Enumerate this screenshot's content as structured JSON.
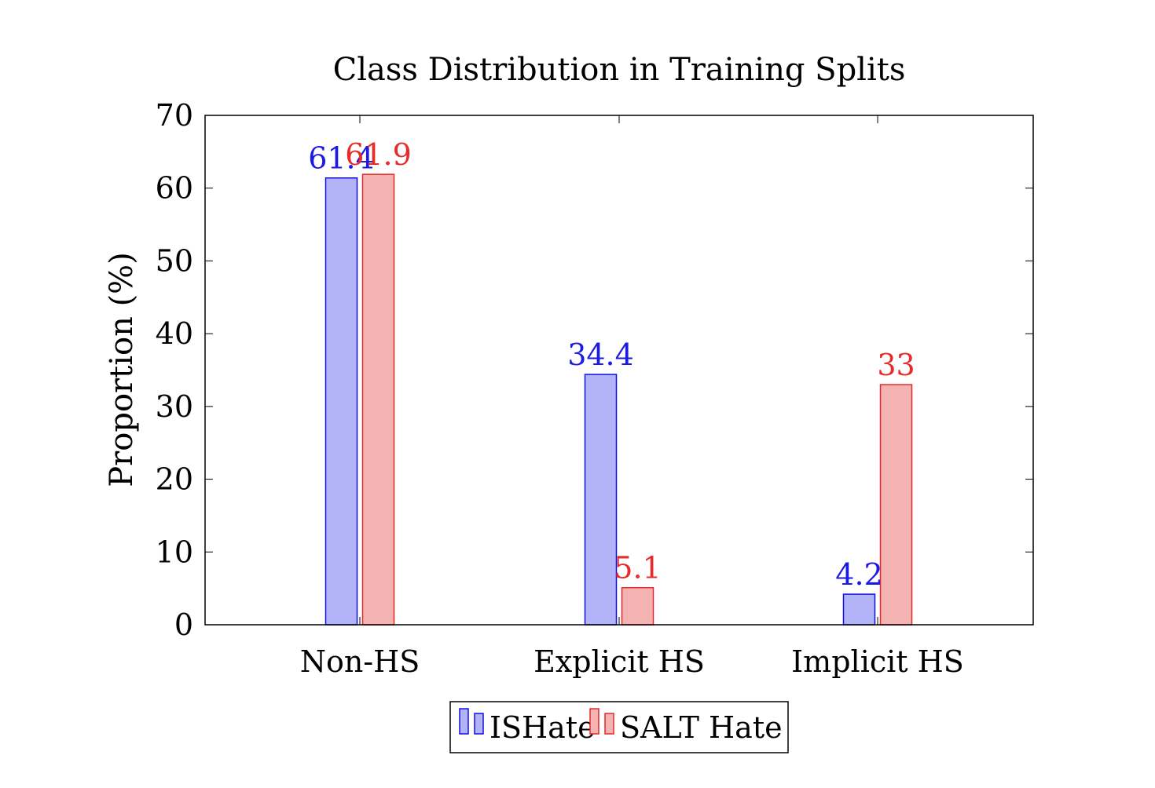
{
  "chart_data": {
    "type": "bar",
    "title": "Class Distribution in Training Splits",
    "xlabel": "",
    "ylabel": "Proportion (%)",
    "categories": [
      "Non-HS",
      "Explicit HS",
      "Implicit HS"
    ],
    "series": [
      {
        "name": "ISHate",
        "values": [
          61.4,
          34.4,
          4.2
        ],
        "labels": [
          "61.4",
          "34.4",
          "4.2"
        ],
        "stroke": "#1010dd",
        "fill": "#b3b3f8",
        "label_color": "#1a1ae0"
      },
      {
        "name": "SALT Hate",
        "values": [
          61.9,
          5.1,
          33
        ],
        "labels": [
          "61.9",
          "5.1",
          "33"
        ],
        "stroke": "#e02a2a",
        "fill": "#f4b3b3",
        "label_color": "#e52b2b"
      }
    ],
    "ylim": [
      0,
      70
    ],
    "yticks": [
      0,
      10,
      20,
      30,
      40,
      50,
      60,
      70
    ],
    "grid": false,
    "legend_position": "bottom-center"
  }
}
